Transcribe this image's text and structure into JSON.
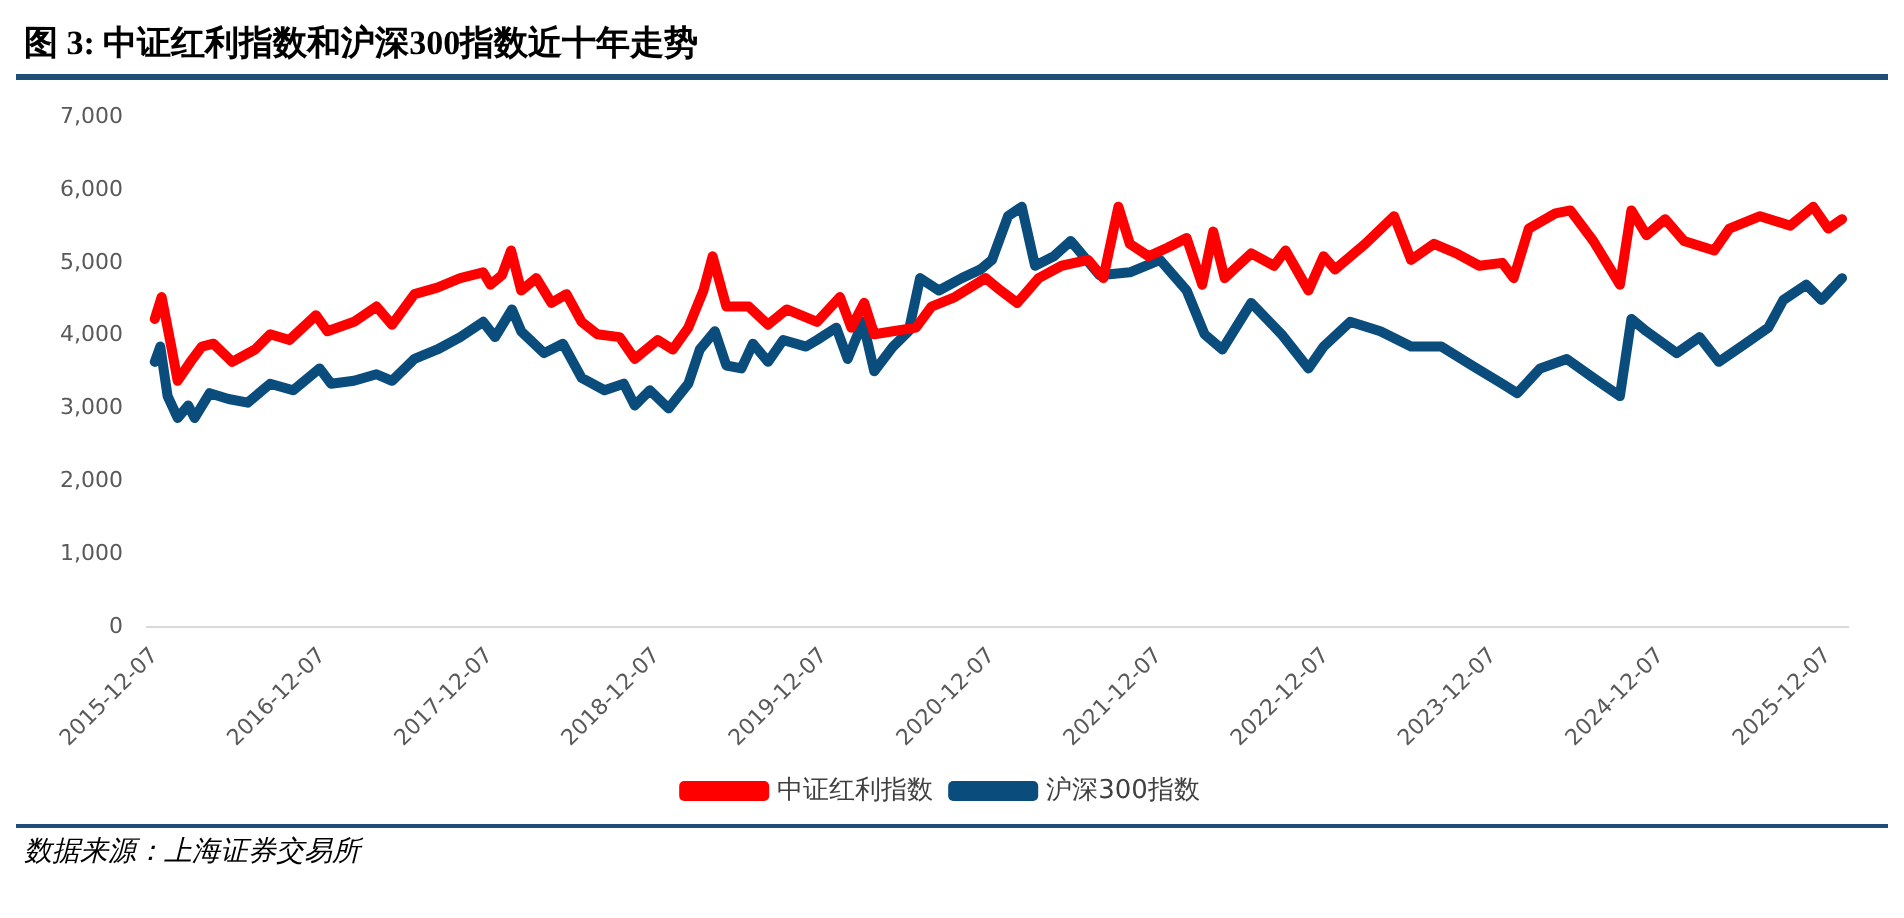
{
  "chart_data": {
    "type": "line",
    "title": "图 3: 中证红利指数和沪深300指数近十年走势",
    "annotations": [
      "数据来源：上海证券交易所"
    ],
    "xlim": [
      "2015-11-20",
      "2026-01-20"
    ],
    "xticks": [
      "2015-12-07",
      "2016-12-07",
      "2017-12-07",
      "2018-12-07",
      "2019-12-07",
      "2020-12-07",
      "2021-12-07",
      "2022-12-07",
      "2023-12-07",
      "2024-12-07",
      "2025-12-07"
    ],
    "ylim": [
      0,
      7000
    ],
    "yticks": [
      0,
      {
        "value": 1000,
        "label": "1,000"
      },
      {
        "value": 2000,
        "label": "2,000"
      },
      {
        "value": 3000,
        "label": "3,000"
      },
      {
        "value": 4000,
        "label": "4,000"
      },
      {
        "value": 5000,
        "label": "5,000"
      },
      {
        "value": 6000,
        "label": "6,000"
      },
      {
        "value": 7000,
        "label": "7,000"
      }
    ],
    "grid": false,
    "legend": "bottom",
    "marker": "none",
    "line_style": "solid",
    "series": [
      {
        "name": "中证红利指数",
        "color": "#ff0000",
        "x": [
          "2015-12-07",
          "2015-12-22",
          "2016-01-12",
          "2016-01-26",
          "2016-02-23",
          "2016-03-19",
          "2016-04-13",
          "2016-05-24",
          "2016-07-13",
          "2016-08-15",
          "2016-09-26",
          "2016-11-23",
          "2016-12-18",
          "2017-02-14",
          "2017-04-04",
          "2017-05-08",
          "2017-06-26",
          "2017-08-15",
          "2017-10-04",
          "2017-11-23",
          "2017-12-09",
          "2018-01-03",
          "2018-01-23",
          "2018-02-14",
          "2018-03-19",
          "2018-04-21",
          "2018-05-24",
          "2018-06-26",
          "2018-07-30",
          "2018-09-17",
          "2018-10-20",
          "2018-12-09",
          "2019-01-11",
          "2019-02-14",
          "2019-03-19",
          "2019-04-08",
          "2019-05-08",
          "2019-06-26",
          "2019-08-07",
          "2019-09-17",
          "2019-11-22",
          "2020-01-11",
          "2020-02-05",
          "2020-03-04",
          "2020-03-26",
          "2020-05-06",
          "2020-06-25",
          "2020-07-29",
          "2020-09-18",
          "2020-11-24",
          "2020-12-27",
          "2021-02-01",
          "2021-03-20",
          "2021-05-09",
          "2021-07-06",
          "2021-08-08",
          "2021-09-10",
          "2021-10-05",
          "2021-11-15",
          "2021-12-27",
          "2022-02-06",
          "2022-03-12",
          "2022-04-05",
          "2022-04-30",
          "2022-06-27",
          "2022-08-16",
          "2022-09-10",
          "2022-10-30",
          "2022-12-02",
          "2022-12-27",
          "2023-03-03",
          "2023-05-05",
          "2023-06-11",
          "2023-07-31",
          "2023-09-18",
          "2023-11-07",
          "2023-12-27",
          "2024-01-21",
          "2024-02-23",
          "2024-04-21",
          "2024-05-24",
          "2024-07-13",
          "2024-09-09",
          "2024-10-04",
          "2024-11-06",
          "2024-12-17",
          "2025-01-27",
          "2025-04-03",
          "2025-05-06",
          "2025-07-12",
          "2025-09-16",
          "2025-11-05",
          "2025-12-08",
          "2026-01-07"
        ],
        "values": [
          4230,
          4530,
          3850,
          3380,
          3640,
          3850,
          3890,
          3640,
          3810,
          4020,
          3940,
          4280,
          4060,
          4190,
          4400,
          4150,
          4570,
          4660,
          4790,
          4870,
          4700,
          4830,
          5170,
          4620,
          4790,
          4450,
          4570,
          4190,
          4020,
          3980,
          3680,
          3940,
          3810,
          4110,
          4620,
          5090,
          4400,
          4400,
          4150,
          4360,
          4190,
          4530,
          4110,
          4450,
          4020,
          4060,
          4110,
          4400,
          4530,
          4790,
          4620,
          4450,
          4790,
          4960,
          5040,
          4790,
          5770,
          5260,
          5090,
          5210,
          5340,
          4700,
          5430,
          4790,
          5130,
          4960,
          5170,
          4620,
          5090,
          4910,
          5260,
          5640,
          5040,
          5260,
          5130,
          4960,
          5000,
          4790,
          5470,
          5680,
          5720,
          5300,
          4700,
          5720,
          5380,
          5600,
          5300,
          5170,
          5470,
          5640,
          5510,
          5770,
          5470,
          5600
        ]
      },
      {
        "name": "沪深300指数",
        "color": "#0a4d7c",
        "x": [
          "2015-12-07",
          "2015-12-19",
          "2016-01-04",
          "2016-01-26",
          "2016-02-18",
          "2016-03-03",
          "2016-04-05",
          "2016-05-16",
          "2016-06-27",
          "2016-08-15",
          "2016-10-04",
          "2016-12-01",
          "2016-12-26",
          "2017-02-14",
          "2017-04-04",
          "2017-05-08",
          "2017-06-26",
          "2017-08-15",
          "2017-10-04",
          "2017-11-23",
          "2017-12-19",
          "2018-01-25",
          "2018-02-14",
          "2018-04-05",
          "2018-05-16",
          "2018-06-26",
          "2018-08-15",
          "2018-09-26",
          "2018-10-20",
          "2018-11-22",
          "2019-01-02",
          "2019-02-14",
          "2019-03-11",
          "2019-04-13",
          "2019-05-08",
          "2019-06-10",
          "2019-07-05",
          "2019-08-07",
          "2019-09-09",
          "2019-10-29",
          "2019-11-22",
          "2020-01-03",
          "2020-01-28",
          "2020-03-01",
          "2020-03-26",
          "2020-05-06",
          "2020-06-09",
          "2020-07-04",
          "2020-08-14",
          "2020-10-03",
          "2020-11-13",
          "2020-12-08",
          "2021-01-12",
          "2021-02-11",
          "2021-03-12",
          "2021-04-22",
          "2021-05-29",
          "2021-07-31",
          "2021-10-05",
          "2021-12-10",
          "2022-02-06",
          "2022-03-17",
          "2022-04-25",
          "2022-06-27",
          "2022-09-01",
          "2022-10-30",
          "2022-12-02",
          "2023-01-29",
          "2023-04-05",
          "2023-06-11",
          "2023-08-16",
          "2023-10-22",
          "2023-12-27",
          "2024-01-29",
          "2024-03-19",
          "2024-05-16",
          "2024-07-13",
          "2024-09-09",
          "2024-10-04",
          "2024-11-06",
          "2025-01-11",
          "2025-03-02",
          "2025-04-13",
          "2025-06-10",
          "2025-07-30",
          "2025-09-01",
          "2025-10-21",
          "2025-11-23",
          "2026-01-07"
        ],
        "values": [
          3640,
          3850,
          3170,
          2870,
          3040,
          2870,
          3210,
          3130,
          3080,
          3340,
          3250,
          3550,
          3340,
          3380,
          3470,
          3380,
          3680,
          3810,
          3980,
          4190,
          3980,
          4360,
          4060,
          3760,
          3890,
          3420,
          3250,
          3340,
          3040,
          3250,
          3000,
          3340,
          3810,
          4060,
          3590,
          3550,
          3890,
          3640,
          3940,
          3850,
          3940,
          4110,
          3680,
          4190,
          3510,
          3850,
          4060,
          4790,
          4620,
          4790,
          4910,
          5040,
          5640,
          5770,
          4960,
          5090,
          5300,
          4830,
          4870,
          5040,
          4620,
          4020,
          3810,
          4450,
          4020,
          3550,
          3850,
          4190,
          4060,
          3850,
          3850,
          3590,
          3340,
          3210,
          3550,
          3680,
          3420,
          3170,
          4230,
          4060,
          3760,
          3980,
          3640,
          3890,
          4110,
          4490,
          4700,
          4490,
          4790
        ]
      }
    ]
  }
}
